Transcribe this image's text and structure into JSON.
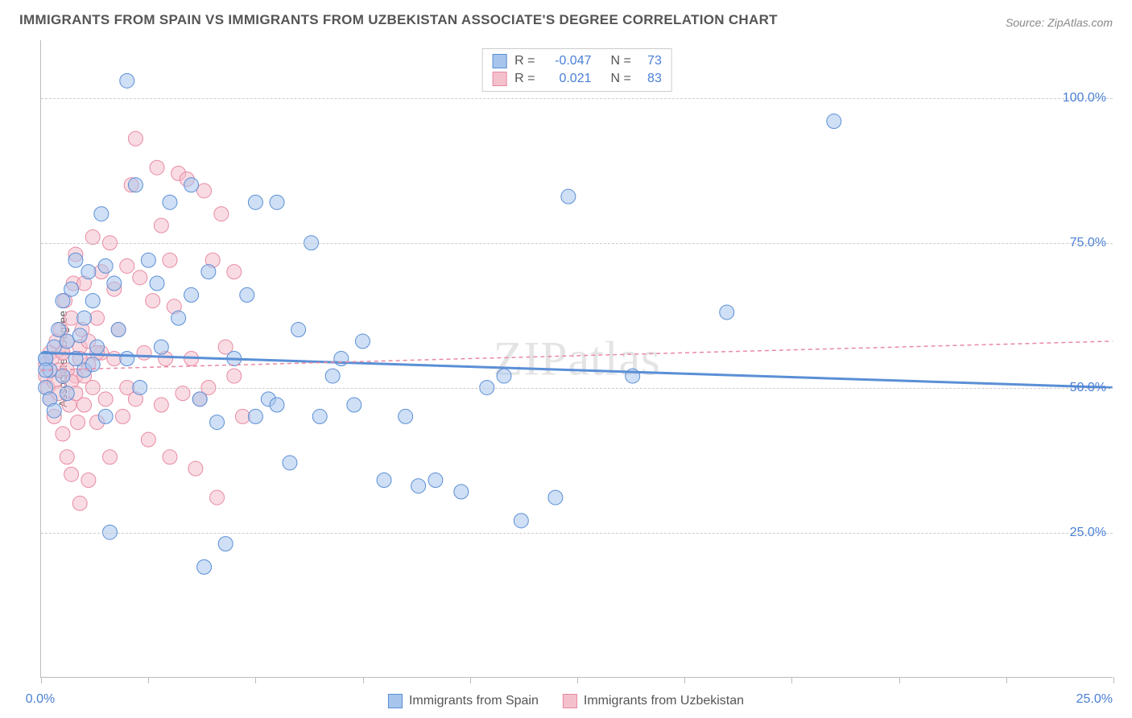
{
  "title": "IMMIGRANTS FROM SPAIN VS IMMIGRANTS FROM UZBEKISTAN ASSOCIATE'S DEGREE CORRELATION CHART",
  "source": "Source: ZipAtlas.com",
  "watermark": "ZIPatlas",
  "ylabel": "Associate's Degree",
  "chart": {
    "type": "scatter-regression",
    "background_color": "#ffffff",
    "grid_color": "#cccccc",
    "axis_color": "#bbbbbb",
    "ylim": [
      0,
      110
    ],
    "xlim": [
      0,
      25
    ],
    "yticks": [
      {
        "v": 25,
        "label": "25.0%"
      },
      {
        "v": 50,
        "label": "50.0%"
      },
      {
        "v": 75,
        "label": "75.0%"
      },
      {
        "v": 100,
        "label": "100.0%"
      }
    ],
    "xticks": [
      {
        "v": 0,
        "label": "0.0%"
      },
      {
        "v": 2.5,
        "label": ""
      },
      {
        "v": 5,
        "label": ""
      },
      {
        "v": 7.5,
        "label": ""
      },
      {
        "v": 10,
        "label": ""
      },
      {
        "v": 12.5,
        "label": ""
      },
      {
        "v": 15,
        "label": ""
      },
      {
        "v": 17.5,
        "label": ""
      },
      {
        "v": 20,
        "label": ""
      },
      {
        "v": 22.5,
        "label": ""
      },
      {
        "v": 25,
        "label": "25.0%"
      }
    ],
    "ytick_color": "#4a7fd6",
    "xtick_color": "#4a7fd6",
    "marker_radius": 9,
    "marker_opacity": 0.55,
    "series": [
      {
        "id": "spain",
        "label": "Immigrants from Spain",
        "color_fill": "#a7c5ec",
        "color_stroke": "#5a8fd6",
        "r_value": "-0.047",
        "n_value": "73",
        "regression": {
          "y1": 56,
          "y2": 50,
          "stroke_width": 3,
          "dash": "none"
        },
        "points": [
          [
            0.1,
            50
          ],
          [
            0.1,
            55
          ],
          [
            0.2,
            53
          ],
          [
            0.2,
            48
          ],
          [
            0.3,
            57
          ],
          [
            0.3,
            46
          ],
          [
            0.4,
            60
          ],
          [
            0.5,
            65
          ],
          [
            0.5,
            52
          ],
          [
            0.6,
            58
          ],
          [
            0.6,
            49
          ],
          [
            0.7,
            67
          ],
          [
            0.8,
            55
          ],
          [
            0.8,
            72
          ],
          [
            0.9,
            59
          ],
          [
            1.0,
            62
          ],
          [
            1.0,
            53
          ],
          [
            1.1,
            70
          ],
          [
            1.2,
            54
          ],
          [
            1.2,
            65
          ],
          [
            1.3,
            57
          ],
          [
            1.4,
            80
          ],
          [
            1.5,
            71
          ],
          [
            1.5,
            45
          ],
          [
            1.6,
            25
          ],
          [
            1.7,
            68
          ],
          [
            1.8,
            60
          ],
          [
            2.0,
            103
          ],
          [
            2.0,
            55
          ],
          [
            2.2,
            85
          ],
          [
            2.3,
            50
          ],
          [
            2.5,
            72
          ],
          [
            2.7,
            68
          ],
          [
            2.8,
            57
          ],
          [
            3.0,
            82
          ],
          [
            3.2,
            62
          ],
          [
            3.5,
            85
          ],
          [
            3.5,
            66
          ],
          [
            3.7,
            48
          ],
          [
            3.8,
            19
          ],
          [
            3.9,
            70
          ],
          [
            4.1,
            44
          ],
          [
            4.3,
            23
          ],
          [
            4.5,
            55
          ],
          [
            4.8,
            66
          ],
          [
            5.0,
            45
          ],
          [
            5.0,
            82
          ],
          [
            5.3,
            48
          ],
          [
            5.5,
            82
          ],
          [
            5.5,
            47
          ],
          [
            5.8,
            37
          ],
          [
            6.0,
            60
          ],
          [
            6.3,
            75
          ],
          [
            6.5,
            45
          ],
          [
            6.8,
            52
          ],
          [
            7.0,
            55
          ],
          [
            7.3,
            47
          ],
          [
            7.5,
            58
          ],
          [
            8.0,
            34
          ],
          [
            8.5,
            45
          ],
          [
            8.8,
            33
          ],
          [
            9.2,
            34
          ],
          [
            9.8,
            32
          ],
          [
            10.4,
            50
          ],
          [
            10.8,
            52
          ],
          [
            11.2,
            27
          ],
          [
            12.0,
            31
          ],
          [
            12.3,
            83
          ],
          [
            13.8,
            52
          ],
          [
            16.0,
            63
          ],
          [
            18.5,
            96
          ],
          [
            0.1,
            55
          ],
          [
            0.1,
            53
          ]
        ]
      },
      {
        "id": "uzbekistan",
        "label": "Immigrants from Uzbekistan",
        "color_fill": "#f4c0cc",
        "color_stroke": "#e88aa2",
        "r_value": "0.021",
        "n_value": "83",
        "regression": {
          "y1": 53,
          "y2": 58,
          "stroke_width": 1.5,
          "dash": "5,4"
        },
        "points": [
          [
            0.1,
            54
          ],
          [
            0.1,
            52
          ],
          [
            0.15,
            50
          ],
          [
            0.2,
            56
          ],
          [
            0.2,
            48
          ],
          [
            0.25,
            55
          ],
          [
            0.3,
            51
          ],
          [
            0.3,
            45
          ],
          [
            0.35,
            58
          ],
          [
            0.4,
            53
          ],
          [
            0.4,
            49
          ],
          [
            0.45,
            60
          ],
          [
            0.5,
            56
          ],
          [
            0.5,
            42
          ],
          [
            0.55,
            65
          ],
          [
            0.6,
            38
          ],
          [
            0.6,
            58
          ],
          [
            0.65,
            47
          ],
          [
            0.7,
            62
          ],
          [
            0.7,
            35
          ],
          [
            0.75,
            68
          ],
          [
            0.8,
            52
          ],
          [
            0.8,
            73
          ],
          [
            0.85,
            44
          ],
          [
            0.9,
            57
          ],
          [
            0.9,
            30
          ],
          [
            0.95,
            60
          ],
          [
            1.0,
            47
          ],
          [
            1.0,
            68
          ],
          [
            1.1,
            54
          ],
          [
            1.1,
            34
          ],
          [
            1.2,
            76
          ],
          [
            1.2,
            50
          ],
          [
            1.3,
            62
          ],
          [
            1.3,
            44
          ],
          [
            1.4,
            70
          ],
          [
            1.4,
            56
          ],
          [
            1.5,
            48
          ],
          [
            1.6,
            75
          ],
          [
            1.6,
            38
          ],
          [
            1.7,
            55
          ],
          [
            1.7,
            67
          ],
          [
            1.8,
            60
          ],
          [
            1.9,
            45
          ],
          [
            2.0,
            71
          ],
          [
            2.0,
            50
          ],
          [
            2.1,
            85
          ],
          [
            2.2,
            93
          ],
          [
            2.2,
            48
          ],
          [
            2.3,
            69
          ],
          [
            2.4,
            56
          ],
          [
            2.5,
            41
          ],
          [
            2.6,
            65
          ],
          [
            2.7,
            88
          ],
          [
            2.8,
            47
          ],
          [
            2.8,
            78
          ],
          [
            2.9,
            55
          ],
          [
            3.0,
            38
          ],
          [
            3.0,
            72
          ],
          [
            3.1,
            64
          ],
          [
            3.2,
            87
          ],
          [
            3.3,
            49
          ],
          [
            3.4,
            86
          ],
          [
            3.5,
            55
          ],
          [
            3.6,
            36
          ],
          [
            3.7,
            48
          ],
          [
            3.8,
            84
          ],
          [
            3.9,
            50
          ],
          [
            4.0,
            72
          ],
          [
            4.1,
            31
          ],
          [
            4.2,
            80
          ],
          [
            4.3,
            57
          ],
          [
            4.5,
            52
          ],
          [
            4.5,
            70
          ],
          [
            4.7,
            45
          ],
          [
            0.5,
            56
          ],
          [
            0.6,
            53
          ],
          [
            0.7,
            51
          ],
          [
            0.8,
            49
          ],
          [
            0.9,
            55
          ],
          [
            1.0,
            52
          ],
          [
            1.1,
            58
          ],
          [
            1.3,
            56
          ]
        ]
      }
    ]
  },
  "legend_top": {
    "rows": [
      {
        "swatch": 0,
        "r_label": "R =",
        "r_val": "-0.047",
        "n_label": "N =",
        "n_val": "73"
      },
      {
        "swatch": 1,
        "r_label": "R =",
        "r_val": "0.021",
        "n_label": "N =",
        "n_val": "83"
      }
    ]
  },
  "legend_bottom": {
    "items": [
      {
        "swatch": 0,
        "label": "Immigrants from Spain"
      },
      {
        "swatch": 1,
        "label": "Immigrants from Uzbekistan"
      }
    ]
  }
}
